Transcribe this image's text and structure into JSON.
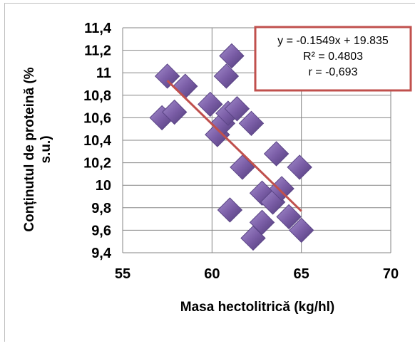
{
  "chart_data": {
    "type": "scatter",
    "xlabel": "Masa hectolitrică (kg/hl)",
    "ylabel_lines": [
      "Conținutul de proteină (%",
      "s.u.)"
    ],
    "xlim": [
      55,
      70
    ],
    "ylim": [
      9.4,
      11.4
    ],
    "x_ticks": [
      55,
      60,
      65,
      70
    ],
    "x_tick_labels": [
      "55",
      "60",
      "65",
      "70"
    ],
    "y_ticks": [
      9.4,
      9.6,
      9.8,
      10.0,
      10.2,
      10.4,
      10.6,
      10.8,
      11.0,
      11.2,
      11.4
    ],
    "y_tick_labels": [
      "9,4",
      "9,6",
      "9,8",
      "10",
      "10,2",
      "10,4",
      "10,6",
      "10,8",
      "11",
      "11,2",
      "11,4"
    ],
    "grid": true,
    "marker_color": "#7b5ea7",
    "trendline_color": "#c0504d",
    "points": [
      {
        "x": 57.5,
        "y": 10.97
      },
      {
        "x": 58.5,
        "y": 10.88
      },
      {
        "x": 57.2,
        "y": 10.6
      },
      {
        "x": 57.9,
        "y": 10.65
      },
      {
        "x": 59.9,
        "y": 10.72
      },
      {
        "x": 60.3,
        "y": 10.45
      },
      {
        "x": 60.6,
        "y": 10.55
      },
      {
        "x": 60.8,
        "y": 10.97
      },
      {
        "x": 60.9,
        "y": 10.64
      },
      {
        "x": 61.1,
        "y": 11.15
      },
      {
        "x": 61.4,
        "y": 10.68
      },
      {
        "x": 62.2,
        "y": 10.55
      },
      {
        "x": 61.7,
        "y": 10.16
      },
      {
        "x": 61.0,
        "y": 9.78
      },
      {
        "x": 62.3,
        "y": 9.53
      },
      {
        "x": 62.8,
        "y": 9.67
      },
      {
        "x": 62.8,
        "y": 9.93
      },
      {
        "x": 63.4,
        "y": 9.85
      },
      {
        "x": 63.6,
        "y": 10.28
      },
      {
        "x": 63.9,
        "y": 9.97
      },
      {
        "x": 64.3,
        "y": 9.72
      },
      {
        "x": 64.9,
        "y": 10.16
      },
      {
        "x": 65.0,
        "y": 9.6
      }
    ],
    "trendline": {
      "x": [
        57.5,
        65.0
      ],
      "y": [
        10.93,
        9.77
      ]
    },
    "annotation": {
      "lines": [
        "y = -0.1549x + 19.835",
        "R² = 0.4803",
        "r = -0,693"
      ],
      "border_color": "#c0504d"
    }
  }
}
